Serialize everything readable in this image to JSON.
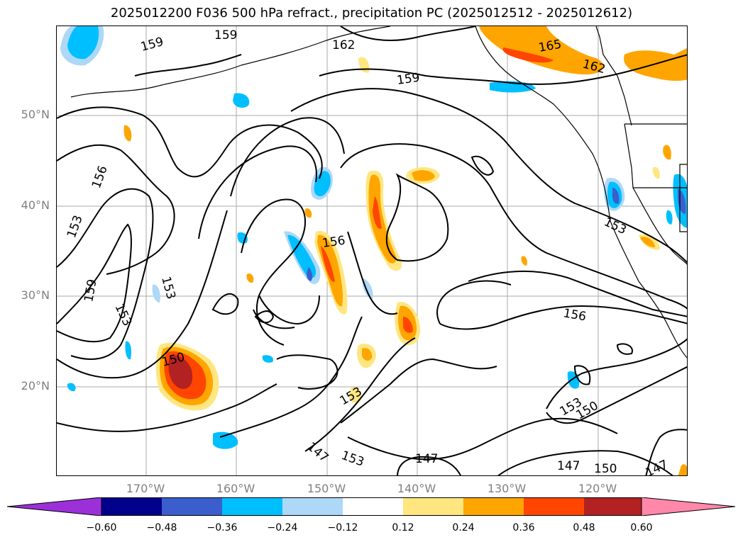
{
  "title": "2025012200 F036 500 hPa refract., precipitation PC (2025012512 - 2025012612)",
  "lat_labels": [
    "50°N",
    "40°N",
    "30°N",
    "20°N"
  ],
  "lon_labels": [
    "170°W",
    "160°W",
    "150°W",
    "140°W",
    "130°W",
    "120°W"
  ],
  "contour_labels": [
    "159",
    "159",
    "162",
    "159",
    "165",
    "162",
    "156",
    "153",
    "159",
    "153",
    "153",
    "156",
    "153",
    "156",
    "150",
    "153",
    "153",
    "150",
    "147",
    "153",
    "147",
    "147",
    "150",
    "147"
  ],
  "colorbar": {
    "ticks": [
      "−0.60",
      "−0.48",
      "−0.36",
      "−0.24",
      "−0.12",
      "0.12",
      "0.24",
      "0.36",
      "0.48",
      "0.60"
    ],
    "colors": [
      "#9b30d9",
      "#00008b",
      "#3a5fcd",
      "#00bfff",
      "#add8f7",
      "#ffffff",
      "#ffe680",
      "#ffa500",
      "#ff4500",
      "#b22222",
      "#ff88aa"
    ]
  }
}
